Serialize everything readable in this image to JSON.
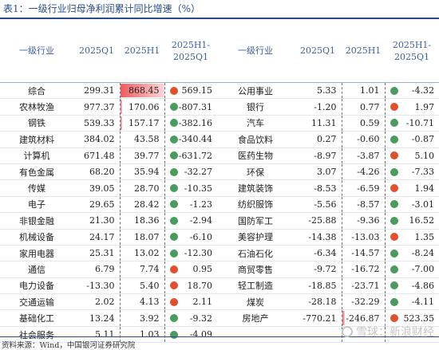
{
  "title": "表1：一级行业归母净利润累计同比增速（%）",
  "headers": {
    "industry": "一级行业",
    "q1": "2025Q1",
    "h1": "2025H1",
    "diff_line1": "2025H1-",
    "diff_line2": "2025Q1"
  },
  "colors": {
    "red": "#e0502a",
    "green": "#4a9b5e",
    "bar": "#ef5a5f"
  },
  "left_rows": [
    {
      "name": "综合",
      "q1": "299.31",
      "h1": "868.45",
      "h1_bar": 1.0,
      "dot": "red",
      "diff": "569.15"
    },
    {
      "name": "农林牧渔",
      "q1": "977.37",
      "h1": "170.06",
      "h1_bar": 0.04,
      "dot": "green",
      "diff": "-807.31"
    },
    {
      "name": "钢铁",
      "q1": "539.33",
      "h1": "157.17",
      "h1_bar": 0.04,
      "dot": "green",
      "diff": "-382.16"
    },
    {
      "name": "建筑材料",
      "q1": "384.02",
      "h1": "43.58",
      "h1_bar": 0,
      "dot": "green",
      "diff": "-340.44"
    },
    {
      "name": "计算机",
      "q1": "671.48",
      "h1": "39.77",
      "h1_bar": 0,
      "dot": "green",
      "diff": "-631.72"
    },
    {
      "name": "有色金属",
      "q1": "68.20",
      "h1": "35.94",
      "h1_bar": 0,
      "dot": "green",
      "diff": "-32.27"
    },
    {
      "name": "传媒",
      "q1": "39.05",
      "h1": "28.70",
      "h1_bar": 0,
      "dot": "green",
      "diff": "-10.35"
    },
    {
      "name": "电子",
      "q1": "29.65",
      "h1": "28.42",
      "h1_bar": 0,
      "dot": "green",
      "diff": "-1.23"
    },
    {
      "name": "非银金融",
      "q1": "21.30",
      "h1": "18.36",
      "h1_bar": 0,
      "dot": "green",
      "diff": "-2.94"
    },
    {
      "name": "机械设备",
      "q1": "24.17",
      "h1": "18.07",
      "h1_bar": 0,
      "dot": "green",
      "diff": "-6.10"
    },
    {
      "name": "家用电器",
      "q1": "25.31",
      "h1": "13.02",
      "h1_bar": 0,
      "dot": "green",
      "diff": "-12.30"
    },
    {
      "name": "通信",
      "q1": "6.79",
      "h1": "7.74",
      "h1_bar": 0,
      "dot": "red",
      "diff": "0.95"
    },
    {
      "name": "电力设备",
      "q1": "-13.30",
      "h1": "5.40",
      "h1_bar": 0,
      "dot": "red",
      "diff": "18.70"
    },
    {
      "name": "交通运输",
      "q1": "2.02",
      "h1": "4.13",
      "h1_bar": 0,
      "dot": "red",
      "diff": "2.11"
    },
    {
      "name": "基础化工",
      "q1": "13.24",
      "h1": "3.92",
      "h1_bar": 0,
      "dot": "green",
      "diff": "-9.32"
    },
    {
      "name": "社会服务",
      "q1": "5.11",
      "h1": "1.03",
      "h1_bar": 0,
      "dot": "green",
      "diff": "-4.09"
    }
  ],
  "right_rows": [
    {
      "name": "公用事业",
      "q1": "5.33",
      "h1": "1.01",
      "h1_bar": 0,
      "dot": "green",
      "diff": "-4.32"
    },
    {
      "name": "银行",
      "q1": "-1.20",
      "h1": "0.77",
      "h1_bar": 0,
      "dot": "red",
      "diff": "1.97"
    },
    {
      "name": "汽车",
      "q1": "11.31",
      "h1": "0.59",
      "h1_bar": 0,
      "dot": "green",
      "diff": "-10.71"
    },
    {
      "name": "食品饮料",
      "q1": "0.27",
      "h1": "-0.60",
      "h1_bar": 0,
      "dot": "green",
      "diff": "-0.87"
    },
    {
      "name": "医药生物",
      "q1": "-8.97",
      "h1": "-3.87",
      "h1_bar": 0,
      "dot": "red",
      "diff": "5.10"
    },
    {
      "name": "环保",
      "q1": "3.07",
      "h1": "-4.26",
      "h1_bar": 0,
      "dot": "green",
      "diff": "-7.33"
    },
    {
      "name": "建筑装饰",
      "q1": "-8.53",
      "h1": "-6.59",
      "h1_bar": 0,
      "dot": "red",
      "diff": "1.94"
    },
    {
      "name": "纺织服饰",
      "q1": "-5.56",
      "h1": "-8.57",
      "h1_bar": 0,
      "dot": "green",
      "diff": "-3.01"
    },
    {
      "name": "国防军工",
      "q1": "-25.88",
      "h1": "-9.36",
      "h1_bar": 0,
      "dot": "green",
      "diff": "16.52"
    },
    {
      "name": "美容护理",
      "q1": "-14.38",
      "h1": "-13.03",
      "h1_bar": 0,
      "dot": "red",
      "diff": "1.35"
    },
    {
      "name": "石油石化",
      "q1": "-6.34",
      "h1": "-14.57",
      "h1_bar": 0,
      "dot": "green",
      "diff": "-8.24"
    },
    {
      "name": "商贸零售",
      "q1": "-9.72",
      "h1": "-16.72",
      "h1_bar": 0,
      "dot": "green",
      "diff": "-7.00"
    },
    {
      "name": "轻工制造",
      "q1": "-18.85",
      "h1": "-23.71",
      "h1_bar": 0,
      "dot": "green",
      "diff": "-4.86"
    },
    {
      "name": "煤炭",
      "q1": "-28.18",
      "h1": "-32.29",
      "h1_bar": 0,
      "dot": "green",
      "diff": "-4.11"
    },
    {
      "name": "房地产",
      "q1": "-770.21",
      "h1": "-246.87",
      "h1_bar": 0.06,
      "dot": "red",
      "diff": "523.35"
    },
    {
      "name": "",
      "q1": "",
      "h1": "",
      "h1_bar": 0,
      "dot": "",
      "diff": ""
    }
  ],
  "source": "资料来源：Wind，中国银河证券研究院",
  "watermark": "雪球：新浪财经"
}
